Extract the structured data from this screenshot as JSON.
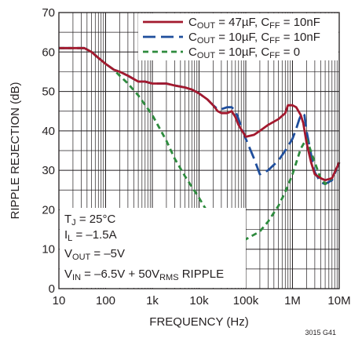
{
  "chart_data": {
    "type": "line",
    "xlabel": "FREQUENCY (Hz)",
    "ylabel": "RIPPLE REJECTION (dB)",
    "xscale": "log",
    "xlim": [
      10,
      10000000
    ],
    "ylim": [
      0,
      70
    ],
    "x_ticks": [
      "10",
      "100",
      "1k",
      "10k",
      "100k",
      "1M",
      "10M"
    ],
    "y_ticks": [
      "0",
      "10",
      "20",
      "30",
      "40",
      "50",
      "60",
      "70"
    ],
    "grid": true,
    "legend_position": "top-right",
    "series": [
      {
        "name": "COUT = 47µF, CFF = 10nF",
        "label_parts": [
          [
            "C",
            ""
          ],
          [
            "OUT",
            "sub"
          ],
          [
            " = 47µF, C",
            ""
          ],
          [
            "FF",
            "sub"
          ],
          [
            " = 10nF",
            ""
          ]
        ],
        "color": "#a3192e",
        "dash": "solid",
        "x": [
          10,
          15,
          25,
          35,
          50,
          70,
          100,
          150,
          200,
          300,
          500,
          700,
          1000,
          1500,
          2000,
          3000,
          5000,
          7000,
          10000,
          15000,
          20000,
          25000,
          30000,
          35000,
          40000,
          50000,
          60000,
          70000,
          100000,
          150000,
          200000,
          300000,
          500000,
          700000,
          800000,
          900000,
          1000000,
          1200000,
          1500000,
          1700000,
          2000000,
          2500000,
          3000000,
          4000000,
          5000000,
          7000000,
          10000000
        ],
        "y": [
          61,
          61,
          61,
          61,
          60,
          58.5,
          57,
          55.5,
          55,
          54,
          52.5,
          52.5,
          52,
          52,
          52,
          51.5,
          51,
          50.5,
          49.5,
          48,
          46.5,
          45,
          44.5,
          44.5,
          44.5,
          45,
          43.5,
          41.5,
          38.5,
          39,
          40,
          41.5,
          43,
          44.5,
          46.5,
          46.5,
          46.5,
          46,
          44,
          42,
          37,
          32,
          29,
          28,
          27.5,
          28,
          32
        ]
      },
      {
        "name": "COUT = 10µF, CFF = 10nF",
        "label_parts": [
          [
            "C",
            ""
          ],
          [
            "OUT",
            "sub"
          ],
          [
            " = 10µF, C",
            ""
          ],
          [
            "FF",
            "sub"
          ],
          [
            " = 10nF",
            ""
          ]
        ],
        "color": "#1f4e9c",
        "dash": "long-dash",
        "x": [
          10,
          15,
          25,
          35,
          50,
          70,
          100,
          150,
          200,
          300,
          500,
          700,
          1000,
          1500,
          2000,
          3000,
          5000,
          7000,
          10000,
          15000,
          20000,
          25000,
          30000,
          40000,
          50000,
          60000,
          70000,
          100000,
          150000,
          200000,
          300000,
          500000,
          700000,
          1000000,
          1200000,
          1400000,
          1600000,
          1800000,
          2000000,
          2500000,
          3000000,
          4000000,
          5000000,
          7000000,
          10000000
        ],
        "y": [
          61,
          61,
          61,
          61,
          60,
          58.5,
          57,
          55.5,
          55,
          54,
          52.5,
          52.5,
          52,
          52,
          52,
          51.5,
          51,
          50.5,
          49.5,
          48,
          46.5,
          45.5,
          45.5,
          46,
          46,
          45,
          43,
          38,
          33,
          29,
          30,
          32.5,
          35,
          38,
          40.5,
          43,
          44.5,
          44,
          40,
          34,
          29.5,
          27,
          26.5,
          27.5,
          32
        ]
      },
      {
        "name": "COUT = 10µF, CFF = 0",
        "label_parts": [
          [
            "C",
            ""
          ],
          [
            "OUT",
            "sub"
          ],
          [
            " = 10µF, C",
            ""
          ],
          [
            "FF",
            "sub"
          ],
          [
            " = 0",
            ""
          ]
        ],
        "color": "#2e8b3e",
        "dash": "short-dash",
        "x": [
          10,
          15,
          25,
          35,
          50,
          70,
          100,
          150,
          200,
          300,
          500,
          1000,
          2000,
          3000,
          5000,
          10000,
          15000,
          20000,
          30000,
          50000,
          70000,
          100000,
          200000,
          300000,
          500000,
          700000,
          1000000,
          1500000,
          2000000,
          3000000,
          4000000,
          5000000,
          7000000,
          10000000
        ],
        "y": [
          61,
          61,
          61,
          61,
          60,
          58.5,
          57,
          55.5,
          54,
          52,
          49,
          44,
          37.5,
          33,
          28.5,
          23,
          19.5,
          16.5,
          14.5,
          13,
          12,
          12.5,
          14.5,
          17,
          21,
          24.5,
          29,
          35.5,
          38,
          32,
          28,
          26.5,
          28,
          32
        ]
      }
    ],
    "annotations": [
      [
        [
          "T",
          ""
        ],
        [
          "J",
          "sub"
        ],
        [
          " = 25°C",
          ""
        ]
      ],
      [
        [
          "I",
          ""
        ],
        [
          "L",
          "sub"
        ],
        [
          " = –1.5A",
          ""
        ]
      ],
      [
        [
          "V",
          ""
        ],
        [
          "OUT",
          "sub"
        ],
        [
          " = –5V",
          ""
        ]
      ],
      [
        [
          "V",
          ""
        ],
        [
          "IN",
          "sub"
        ],
        [
          " = –6.5V + 50V",
          ""
        ],
        [
          "RMS",
          "sub"
        ],
        [
          " RIPPLE",
          ""
        ]
      ]
    ],
    "figure_id": "3015 G41"
  }
}
